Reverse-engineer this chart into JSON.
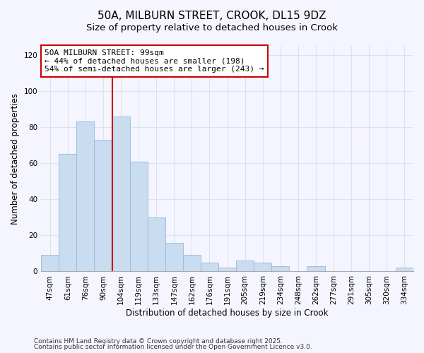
{
  "title": "50A, MILBURN STREET, CROOK, DL15 9DZ",
  "subtitle": "Size of property relative to detached houses in Crook",
  "xlabel": "Distribution of detached houses by size in Crook",
  "ylabel": "Number of detached properties",
  "categories": [
    "47sqm",
    "61sqm",
    "76sqm",
    "90sqm",
    "104sqm",
    "119sqm",
    "133sqm",
    "147sqm",
    "162sqm",
    "176sqm",
    "191sqm",
    "205sqm",
    "219sqm",
    "234sqm",
    "248sqm",
    "262sqm",
    "277sqm",
    "291sqm",
    "305sqm",
    "320sqm",
    "334sqm"
  ],
  "values": [
    9,
    65,
    83,
    73,
    86,
    61,
    30,
    16,
    9,
    5,
    2,
    6,
    5,
    3,
    0,
    3,
    0,
    0,
    0,
    0,
    2
  ],
  "bar_color": "#c9dcf0",
  "bar_edge_color": "#9ab8d8",
  "vline_color": "#cc0000",
  "annotation_text": "50A MILBURN STREET: 99sqm\n← 44% of detached houses are smaller (198)\n54% of semi-detached houses are larger (243) →",
  "annotation_box_color": "#ffffff",
  "annotation_box_edge": "#cc0000",
  "ylim": [
    0,
    125
  ],
  "yticks": [
    0,
    20,
    40,
    60,
    80,
    100,
    120
  ],
  "footer_line1": "Contains HM Land Registry data © Crown copyright and database right 2025.",
  "footer_line2": "Contains public sector information licensed under the Open Government Licence v3.0.",
  "bg_color": "#f5f5ff",
  "grid_color": "#d8e4f0",
  "title_fontsize": 11,
  "subtitle_fontsize": 9.5,
  "axis_label_fontsize": 8.5,
  "tick_fontsize": 7.5,
  "annotation_fontsize": 8,
  "footer_fontsize": 6.5
}
